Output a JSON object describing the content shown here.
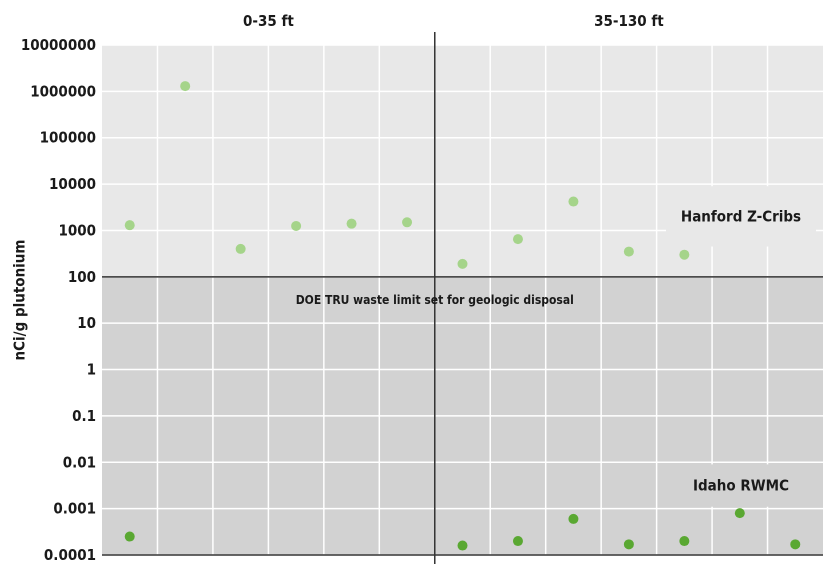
{
  "chart_data": {
    "type": "scatter",
    "ylabel": "nCi/g plutonium",
    "yscale": "log",
    "ylim": [
      0.0001,
      10000000
    ],
    "yticks": [
      "10000000",
      "1000000",
      "100000",
      "10000",
      "1000",
      "100",
      "10",
      "1",
      "0.1",
      "0.01",
      "0.001",
      "0.0001"
    ],
    "panels": [
      "0-35 ft",
      "35-130 ft"
    ],
    "threshold": {
      "label": "DOE TRU waste limit set for geologic disposal",
      "value": 100
    },
    "series": [
      {
        "name": "Hanford Z-Cribs",
        "color": "#a5d48a",
        "points": [
          {
            "x": 1,
            "y": 1300
          },
          {
            "x": 2,
            "y": 1300000
          },
          {
            "x": 3,
            "y": 400
          },
          {
            "x": 4,
            "y": 1250
          },
          {
            "x": 5,
            "y": 1400
          },
          {
            "x": 6,
            "y": 1500
          },
          {
            "x": 7,
            "y": 190
          },
          {
            "x": 8,
            "y": 650
          },
          {
            "x": 9,
            "y": 4200
          },
          {
            "x": 10,
            "y": 350
          },
          {
            "x": 11,
            "y": 300
          }
        ]
      },
      {
        "name": "Idaho RWMC",
        "color": "#5aa832",
        "points": [
          {
            "x": 1,
            "y": 0.00025
          },
          {
            "x": 7,
            "y": 0.00016
          },
          {
            "x": 8,
            "y": 0.0002
          },
          {
            "x": 9,
            "y": 0.0006
          },
          {
            "x": 10,
            "y": 0.00017
          },
          {
            "x": 11,
            "y": 0.0002
          },
          {
            "x": 12,
            "y": 0.0008
          },
          {
            "x": 13,
            "y": 0.00017
          }
        ]
      }
    ],
    "grid": true
  },
  "colors": {
    "upper_bg": "#e8e8e8",
    "lower_bg": "#d2d2d2",
    "grid": "#ffffff",
    "hanford": "#a5d48a",
    "idaho": "#5aa832"
  }
}
